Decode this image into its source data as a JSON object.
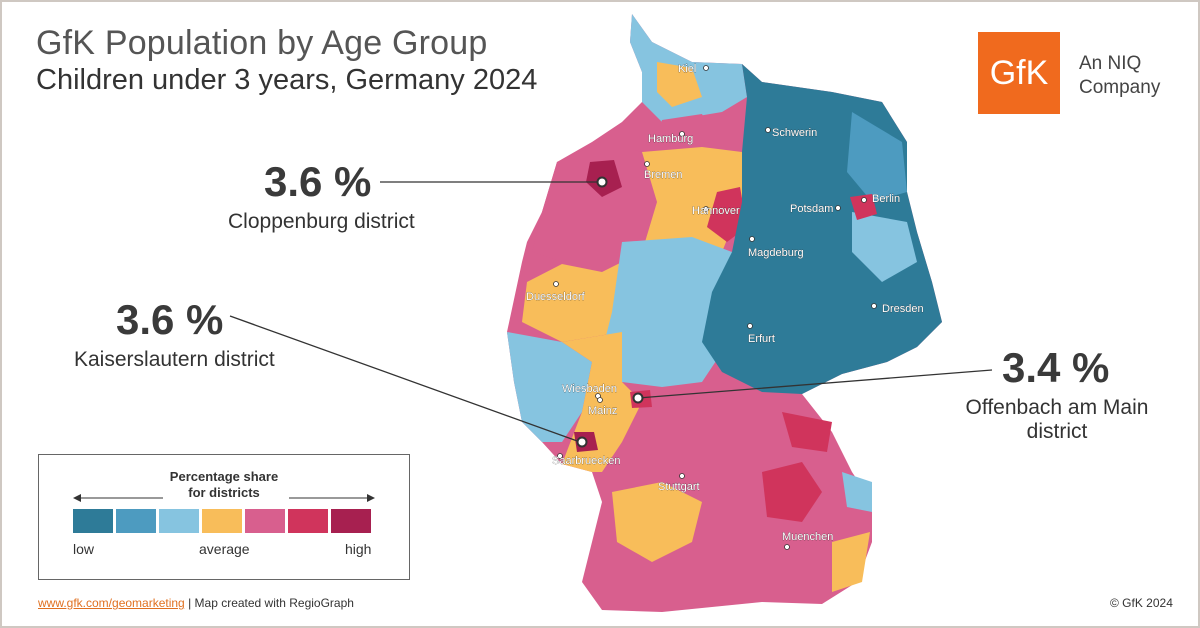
{
  "title": "GfK Population by Age Group",
  "subtitle": "Children under 3 years, Germany 2024",
  "logo": {
    "text": "GfK",
    "tagline_line1": "An NIQ",
    "tagline_line2": "Company",
    "color": "#f06a1e"
  },
  "callouts": [
    {
      "value": "3.6 %",
      "name": "Cloppenburg district"
    },
    {
      "value": "3.6 %",
      "name": "Kaiserslautern district"
    },
    {
      "value": "3.4 %",
      "name": "Offenbach am Main",
      "name2": "district"
    }
  ],
  "cities": [
    "Kiel",
    "Hamburg",
    "Schwerin",
    "Bremen",
    "Berlin",
    "Potsdam",
    "Hannover",
    "Magdeburg",
    "Duesseldorf",
    "Dresden",
    "Erfurt",
    "Wiesbaden",
    "Mainz",
    "Saarbruecken",
    "Stuttgart",
    "Muenchen"
  ],
  "legend": {
    "title_line1": "Percentage share",
    "title_line2": "for districts",
    "colors": [
      "#2e7b98",
      "#4d9bc0",
      "#86c4e0",
      "#f8bd5a",
      "#d85f8e",
      "#d0345c",
      "#a72050"
    ],
    "low": "low",
    "average": "average",
    "high": "high"
  },
  "footer": {
    "link": "www.gfk.com/geomarketing",
    "text": " | Map created with RegioGraph",
    "copyright": "© GfK 2024"
  }
}
